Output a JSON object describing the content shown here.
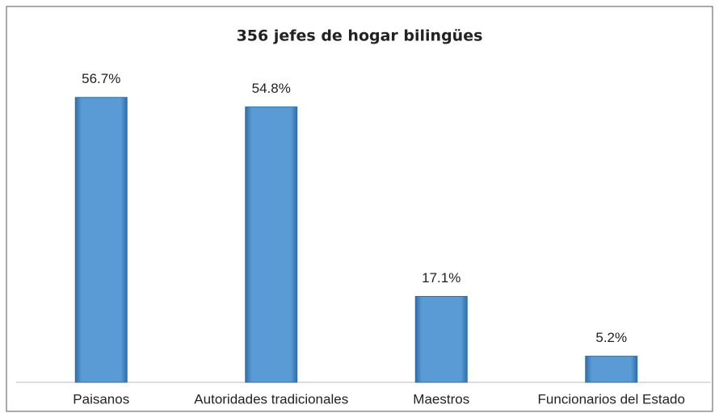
{
  "chart_data": {
    "type": "bar",
    "title": "356 jefes de hogar bilingües",
    "categories": [
      "Paisanos",
      "Autoridades tradicionales",
      "Maestros",
      "Funcionarios del Estado"
    ],
    "values": [
      56.7,
      54.8,
      17.1,
      5.2
    ],
    "value_labels": [
      "56.7%",
      "54.8%",
      "17.1%",
      "5.2%"
    ],
    "color": "#5b9bd5"
  }
}
